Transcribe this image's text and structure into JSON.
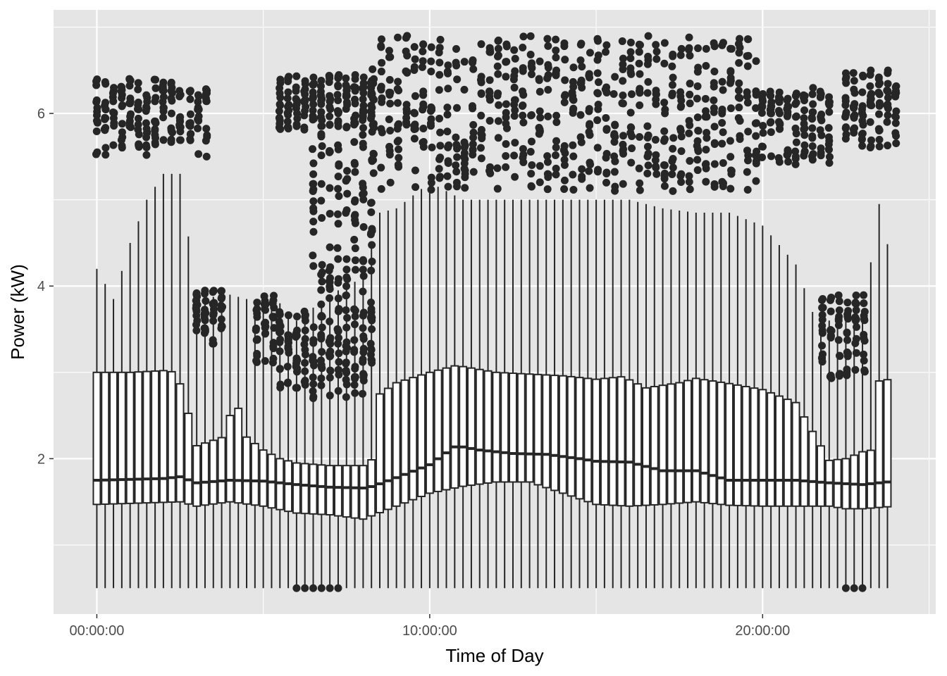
{
  "chart_data": {
    "type": "boxplot",
    "xlabel": "Time of Day",
    "ylabel": "Power (kW)",
    "x_ticks": [
      {
        "label": "00:00:00",
        "hour": 0
      },
      {
        "label": "10:00:00",
        "hour": 10
      },
      {
        "label": "20:00:00",
        "hour": 20
      }
    ],
    "y_ticks": [
      2,
      4,
      6
    ],
    "xlim_hours": [
      -1.3,
      25.2
    ],
    "ylim": [
      0.2,
      7.2
    ],
    "grid": true,
    "interval_minutes": 15,
    "colors": {
      "panel": "#e5e5e5",
      "grid_major": "#ffffff",
      "ink": "#262626",
      "box_fill": "#ffffff"
    },
    "profiles": {
      "whisker_low": 0.5,
      "q1_knots": [
        [
          0,
          1.47
        ],
        [
          2.5,
          1.5
        ],
        [
          3,
          1.45
        ],
        [
          4,
          1.5
        ],
        [
          5,
          1.45
        ],
        [
          6,
          1.37
        ],
        [
          7,
          1.35
        ],
        [
          8,
          1.3
        ],
        [
          9,
          1.45
        ],
        [
          10,
          1.6
        ],
        [
          11,
          1.68
        ],
        [
          12,
          1.73
        ],
        [
          13,
          1.73
        ],
        [
          14,
          1.6
        ],
        [
          15,
          1.47
        ],
        [
          16,
          1.45
        ],
        [
          17,
          1.47
        ],
        [
          18,
          1.5
        ],
        [
          19,
          1.46
        ],
        [
          20,
          1.45
        ],
        [
          21,
          1.45
        ],
        [
          22,
          1.45
        ],
        [
          22.5,
          1.42
        ],
        [
          23,
          1.42
        ],
        [
          24,
          1.45
        ]
      ],
      "median_knots": [
        [
          0,
          1.75
        ],
        [
          1,
          1.76
        ],
        [
          2,
          1.77
        ],
        [
          2.5,
          1.79
        ],
        [
          3,
          1.72
        ],
        [
          4,
          1.75
        ],
        [
          5,
          1.74
        ],
        [
          6,
          1.7
        ],
        [
          7,
          1.67
        ],
        [
          8,
          1.66
        ],
        [
          8.3,
          1.68
        ],
        [
          9,
          1.78
        ],
        [
          10,
          1.93
        ],
        [
          10.8,
          2.15
        ],
        [
          11.5,
          2.1
        ],
        [
          12.5,
          2.06
        ],
        [
          13.5,
          2.05
        ],
        [
          14.5,
          2
        ],
        [
          15,
          1.97
        ],
        [
          16,
          1.96
        ],
        [
          17,
          1.86
        ],
        [
          18,
          1.86
        ],
        [
          19,
          1.75
        ],
        [
          20,
          1.75
        ],
        [
          21,
          1.75
        ],
        [
          22,
          1.72
        ],
        [
          23,
          1.7
        ],
        [
          24,
          1.74
        ]
      ],
      "q3_knots": [
        [
          0,
          3.0
        ],
        [
          1,
          3.0
        ],
        [
          2,
          3.02
        ],
        [
          2.4,
          3.0
        ],
        [
          2.7,
          2.6
        ],
        [
          3,
          2.15
        ],
        [
          3.8,
          2.25
        ],
        [
          4,
          2.5
        ],
        [
          4.3,
          2.6
        ],
        [
          4.5,
          2.25
        ],
        [
          5,
          2.1
        ],
        [
          5.5,
          2.0
        ],
        [
          6,
          1.95
        ],
        [
          7,
          1.92
        ],
        [
          8,
          1.92
        ],
        [
          8.3,
          2.0
        ],
        [
          8.5,
          2.75
        ],
        [
          9,
          2.88
        ],
        [
          10,
          3.0
        ],
        [
          10.8,
          3.08
        ],
        [
          12,
          3.0
        ],
        [
          13,
          2.98
        ],
        [
          14,
          2.96
        ],
        [
          15,
          2.92
        ],
        [
          15.8,
          2.95
        ],
        [
          16.5,
          2.82
        ],
        [
          17.5,
          2.88
        ],
        [
          18,
          2.93
        ],
        [
          19,
          2.87
        ],
        [
          20,
          2.8
        ],
        [
          21,
          2.65
        ],
        [
          21.3,
          2.45
        ],
        [
          22,
          1.98
        ],
        [
          22.5,
          2.0
        ],
        [
          23,
          2.08
        ],
        [
          23.3,
          2.1
        ],
        [
          23.5,
          2.9
        ],
        [
          24,
          2.93
        ]
      ],
      "whisker_high_knots": [
        [
          0,
          4.2
        ],
        [
          0.5,
          3.85
        ],
        [
          1,
          4.5
        ],
        [
          1.5,
          5.0
        ],
        [
          2,
          5.3
        ],
        [
          2.5,
          5.3
        ],
        [
          3,
          3.85
        ],
        [
          4,
          3.9
        ],
        [
          5,
          3.8
        ],
        [
          5.5,
          3.8
        ],
        [
          6,
          3.6
        ],
        [
          7,
          3.9
        ],
        [
          8,
          4.1
        ],
        [
          8.5,
          4.85
        ],
        [
          9,
          4.9
        ],
        [
          10,
          5.2
        ],
        [
          11,
          5.0
        ],
        [
          12,
          5.0
        ],
        [
          13,
          5.0
        ],
        [
          14,
          5.0
        ],
        [
          15,
          5.0
        ],
        [
          16,
          5.0
        ],
        [
          17,
          4.9
        ],
        [
          18,
          4.85
        ],
        [
          19,
          4.85
        ],
        [
          20,
          4.7
        ],
        [
          21,
          4.25
        ],
        [
          21.5,
          3.7
        ],
        [
          22,
          3.6
        ],
        [
          23,
          3.6
        ],
        [
          23.5,
          4.95
        ],
        [
          24,
          4.02
        ]
      ],
      "outlier_bands": [
        {
          "from_hour": 0,
          "to_hour": 2.7,
          "low": 5.5,
          "high": 6.4
        },
        {
          "from_hour": 2.8,
          "to_hour": 3.5,
          "low": 5.5,
          "high": 6.3
        },
        {
          "from_hour": 3.0,
          "to_hour": 3.8,
          "low": 3.3,
          "high": 3.95
        },
        {
          "from_hour": 4.8,
          "to_hour": 5.5,
          "low": 3.1,
          "high": 3.9
        },
        {
          "from_hour": 5.5,
          "to_hour": 8.3,
          "low": 2.7,
          "high": 3.75
        },
        {
          "from_hour": 5.5,
          "to_hour": 8.3,
          "low": 5.8,
          "high": 6.45
        },
        {
          "from_hour": 6.5,
          "to_hour": 8.3,
          "low": 3.7,
          "high": 5.8
        },
        {
          "from_hour": 8.3,
          "to_hour": 20.0,
          "low": 5.1,
          "high": 6.9
        },
        {
          "from_hour": 20.0,
          "to_hour": 22.0,
          "low": 5.4,
          "high": 6.3
        },
        {
          "from_hour": 21.8,
          "to_hour": 23.1,
          "low": 2.9,
          "high": 3.9
        },
        {
          "from_hour": 22.5,
          "to_hour": 24.0,
          "low": 5.6,
          "high": 6.5
        }
      ],
      "low_outlier_ranges": [
        [
          6.0,
          7.3
        ],
        [
          22.5,
          23.1
        ]
      ],
      "low_outlier_value": 0.5
    }
  }
}
